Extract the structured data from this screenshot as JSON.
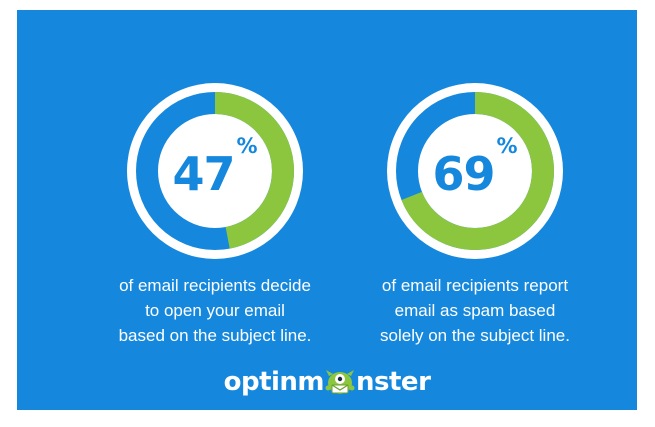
{
  "chart_data": [
    {
      "type": "donut",
      "value": 47,
      "unit": "%",
      "caption_lines": [
        "of email recipients decide",
        "to open your email",
        "based on the subject line."
      ]
    },
    {
      "type": "donut",
      "value": 69,
      "unit": "%",
      "caption_lines": [
        "of email recipients report",
        "email as spam based",
        "solely on the subject line."
      ]
    }
  ],
  "brand": {
    "text_before": "optinm",
    "text_after": "nster",
    "logo_icon": "monster-mascot-icon"
  },
  "colors": {
    "background": "#1588dd",
    "ring_fill": "#8cc63f",
    "ring_track": "#1588dd",
    "ring_outline": "#ffffff",
    "text": "#ffffff",
    "page": "#ffffff"
  }
}
